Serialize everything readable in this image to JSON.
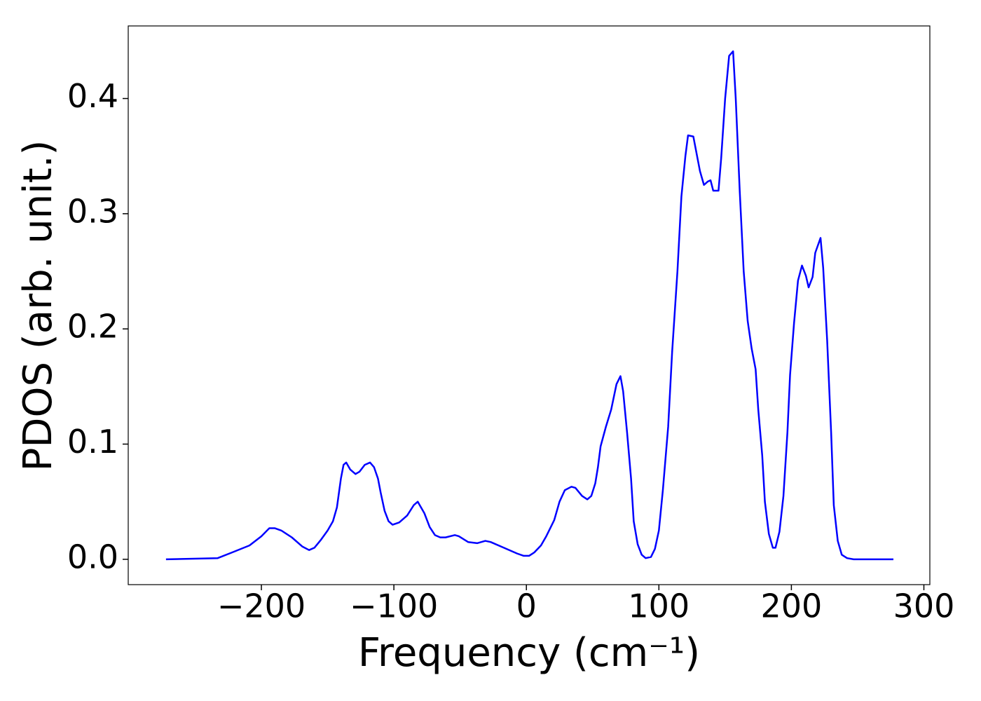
{
  "chart_data": {
    "type": "line",
    "xlabel": "Frequency (cm⁻¹)",
    "ylabel": "PDOS (arb. unit.)",
    "x": [
      -272,
      -233,
      -222,
      -209,
      -200,
      -194,
      -190,
      -185,
      -177,
      -169,
      -164,
      -160,
      -155,
      -150,
      -146,
      -143,
      -140,
      -138,
      -136,
      -133,
      -129,
      -126,
      -122,
      -118,
      -115,
      -112,
      -110,
      -107,
      -104,
      -101,
      -96,
      -90,
      -85,
      -82,
      -81,
      -77,
      -73,
      -69,
      -65,
      -61,
      -54,
      -51,
      -44,
      -37,
      -31,
      -27,
      -17,
      -7,
      -2,
      2,
      6,
      11,
      15,
      21,
      25,
      29,
      34,
      37,
      42,
      46,
      49,
      52,
      54,
      56,
      60,
      64,
      68,
      71,
      73,
      76,
      79,
      81,
      84,
      87,
      90,
      94,
      97,
      100,
      103,
      107,
      110,
      114,
      117,
      120,
      122,
      126,
      128,
      131,
      134,
      137,
      139,
      141,
      145,
      147,
      150,
      153,
      156,
      158,
      161,
      164,
      167,
      170,
      173,
      175,
      178,
      180,
      183,
      186,
      188,
      191,
      194,
      197,
      199,
      202,
      205,
      208,
      211,
      213,
      216,
      218,
      222,
      224,
      227,
      230,
      232,
      235,
      238,
      242,
      247,
      277
    ],
    "series": [
      {
        "color": "#0000ff",
        "values": [
          0,
          0.001,
          0.006,
          0.012,
          0.02,
          0.027,
          0.027,
          0.025,
          0.019,
          0.011,
          0.008,
          0.01,
          0.017,
          0.025,
          0.033,
          0.045,
          0.07,
          0.082,
          0.084,
          0.078,
          0.074,
          0.076,
          0.082,
          0.084,
          0.08,
          0.07,
          0.058,
          0.042,
          0.033,
          0.03,
          0.032,
          0.038,
          0.047,
          0.05,
          0.048,
          0.04,
          0.028,
          0.021,
          0.019,
          0.019,
          0.021,
          0.02,
          0.015,
          0.014,
          0.016,
          0.015,
          0.01,
          0.005,
          0.003,
          0.003,
          0.006,
          0.012,
          0.02,
          0.034,
          0.05,
          0.06,
          0.063,
          0.062,
          0.055,
          0.052,
          0.055,
          0.066,
          0.08,
          0.098,
          0.115,
          0.13,
          0.152,
          0.159,
          0.146,
          0.11,
          0.07,
          0.033,
          0.013,
          0.004,
          0.001,
          0.002,
          0.009,
          0.025,
          0.06,
          0.115,
          0.18,
          0.25,
          0.315,
          0.35,
          0.368,
          0.367,
          0.355,
          0.337,
          0.325,
          0.328,
          0.329,
          0.32,
          0.32,
          0.348,
          0.4,
          0.437,
          0.441,
          0.4,
          0.32,
          0.25,
          0.207,
          0.183,
          0.165,
          0.13,
          0.09,
          0.05,
          0.022,
          0.01,
          0.01,
          0.024,
          0.055,
          0.11,
          0.16,
          0.205,
          0.242,
          0.255,
          0.246,
          0.236,
          0.245,
          0.266,
          0.279,
          0.253,
          0.19,
          0.11,
          0.047,
          0.016,
          0.004,
          0.001,
          0,
          0
        ]
      }
    ],
    "xlim": [
      -300.5,
      304.5
    ],
    "ylim": [
      -0.022,
      0.463
    ],
    "xticks": [
      {
        "value": -200,
        "label": "−200"
      },
      {
        "value": -100,
        "label": "−100"
      },
      0,
      100,
      200,
      300
    ],
    "yticks": [
      {
        "value": 0,
        "label": "0.0"
      },
      0.1,
      0.2,
      0.3,
      0.4
    ],
    "grid": false
  }
}
